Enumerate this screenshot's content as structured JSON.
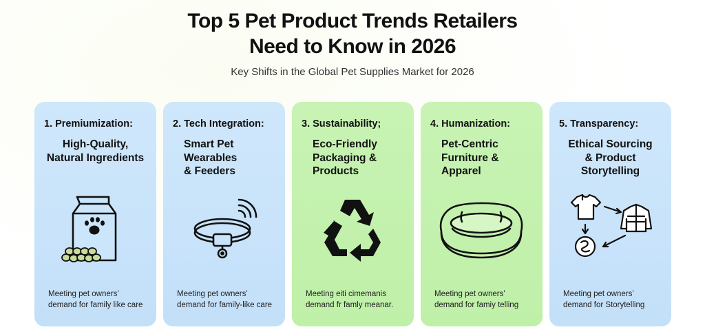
{
  "header": {
    "title_line1": "Top 5 Pet Product Trends Retailers",
    "title_line2": "Need to Know in 2026",
    "subtitle": "Key Shifts in the Global Pet Supplies Market for 2026"
  },
  "cards": [
    {
      "heading": "1. Premiumization:",
      "title": "High-Quality,\nNatural Ingredients",
      "icon": "pet-food-bag-icon",
      "footer": "Meeting pet owners'\ndemand for family like care",
      "color": "#c8e4fa"
    },
    {
      "heading": "2. Tech Integration:",
      "title": "Smart Pet\nWearables\n& Feeders",
      "icon": "smart-collar-icon",
      "footer": "Meeting pet owners'\ndemand for family-like care",
      "color": "#c8e4fa"
    },
    {
      "heading": "3. Sustainability;",
      "title": "Eco-Friendly\nPackaging &\nProducts",
      "icon": "recycle-icon",
      "footer": "Meeting eiti cimemanis\ndemand fr famly meanar.",
      "color": "#c4f2ae"
    },
    {
      "heading": "4. Humanization:",
      "title": "Pet-Centric\nFurniture &\nApparel",
      "icon": "pet-bed-icon",
      "footer": "Meeting pet owners'\ndemand for famiy telling",
      "color": "#c4f2ae"
    },
    {
      "heading": "5. Transparency:",
      "title": "Ethical Sourcing\n& Product\nStorytelling",
      "icon": "supply-chain-icon",
      "footer": "Meeting pet owners'\ndemand for Storytelling",
      "color": "#c8e4fa"
    }
  ]
}
